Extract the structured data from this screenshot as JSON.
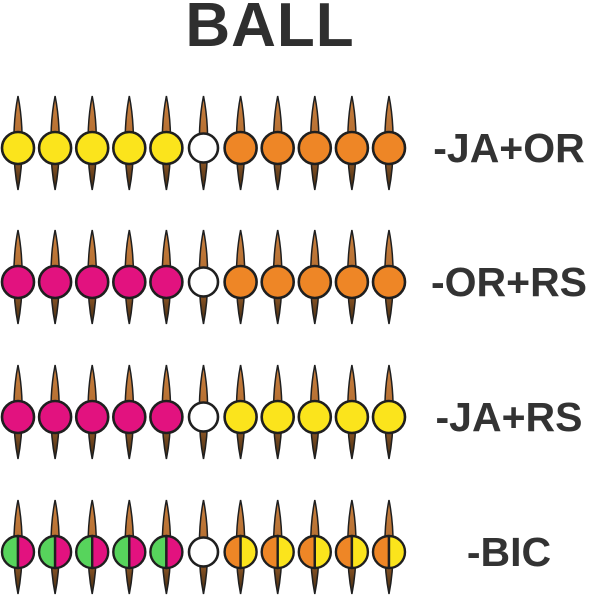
{
  "title": "BALL",
  "colors": {
    "yellow": "#FBE41C",
    "orange": "#EE8626",
    "pink": "#E2127F",
    "green": "#57D45C",
    "white": "#FFFFFF",
    "outline": "#1f1f1f",
    "needle_top": "#C8803F",
    "needle_mid": "#B06A2E",
    "needle_tip": "#3F2A12",
    "text": "#333333"
  },
  "rows": [
    {
      "label": "-JA+OR",
      "balls": [
        "yellow",
        "yellow",
        "yellow",
        "yellow",
        "yellow",
        "white",
        "orange",
        "orange",
        "orange",
        "orange",
        "orange"
      ]
    },
    {
      "label": "-OR+RS",
      "balls": [
        "pink",
        "pink",
        "pink",
        "pink",
        "pink",
        "white",
        "orange",
        "orange",
        "orange",
        "orange",
        "orange"
      ]
    },
    {
      "label": "-JA+RS",
      "balls": [
        "pink",
        "pink",
        "pink",
        "pink",
        "pink",
        "white",
        "yellow",
        "yellow",
        "yellow",
        "yellow",
        "yellow"
      ]
    },
    {
      "label": "-BIC",
      "balls": [
        [
          "green",
          "pink"
        ],
        [
          "green",
          "pink"
        ],
        [
          "green",
          "pink"
        ],
        [
          "green",
          "pink"
        ],
        [
          "green",
          "pink"
        ],
        "white",
        [
          "orange",
          "yellow"
        ],
        [
          "orange",
          "yellow"
        ],
        [
          "orange",
          "yellow"
        ],
        [
          "orange",
          "yellow"
        ],
        [
          "orange",
          "yellow"
        ]
      ]
    }
  ]
}
